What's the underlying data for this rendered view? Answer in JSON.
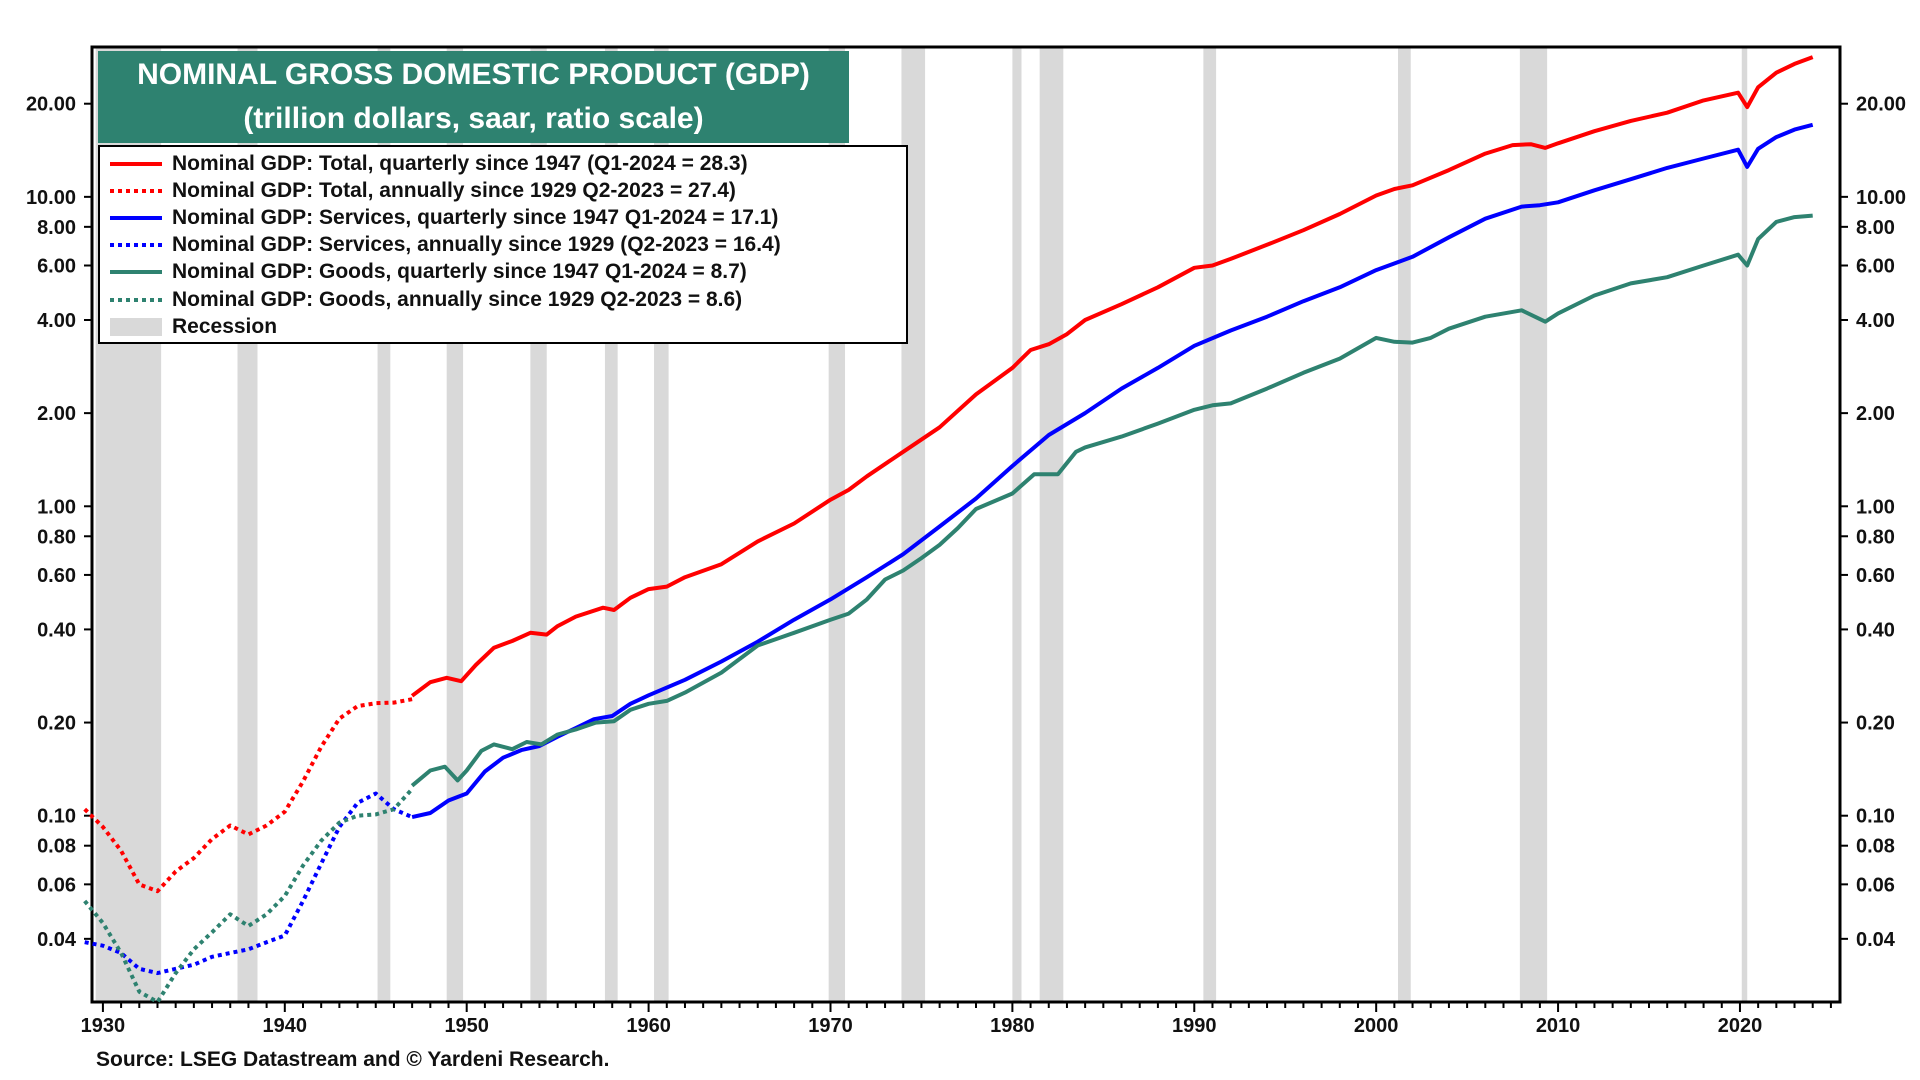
{
  "title": {
    "line1": "NOMINAL GROSS DOMESTIC PRODUCT (GDP)",
    "line2": "(trillion dollars, saar, ratio scale)"
  },
  "source": "Source: LSEG Datastream and © Yardeni Research.",
  "legend": [
    {
      "label": "Nominal GDP: Total, quarterly since 1947  (Q1-2024 = 28.3)",
      "color": "#ff0000",
      "style": "solid"
    },
    {
      "label": "Nominal GDP: Total, annually since 1929 Q2-2023 = 27.4)",
      "color": "#ff0000",
      "style": "dotted"
    },
    {
      "label": "Nominal GDP: Services, quarterly since 1947 Q1-2024 = 17.1)",
      "color": "#0000ff",
      "style": "solid"
    },
    {
      "label": "Nominal GDP: Services, annually since 1929 (Q2-2023 = 16.4)",
      "color": "#0000ff",
      "style": "dotted"
    },
    {
      "label": "Nominal GDP: Goods, quarterly since 1947 Q1-2024 = 8.7)",
      "color": "#2e8270",
      "style": "solid"
    },
    {
      "label": "Nominal GDP: Goods, annually since 1929 Q2-2023 = 8.6)",
      "color": "#2e8270",
      "style": "dotted"
    },
    {
      "label": "Recession",
      "color": "#d9d9d9",
      "style": "box"
    }
  ],
  "chart_data": {
    "type": "line",
    "scale": "log",
    "xlim": [
      1929.4,
      2025.5
    ],
    "ylim": [
      0.025,
      30.5
    ],
    "x_ticks": [
      1930,
      1940,
      1950,
      1960,
      1970,
      1980,
      1990,
      2000,
      2010,
      2020
    ],
    "y_ticks": [
      {
        "value": 20,
        "label": "20.00"
      },
      {
        "value": 10,
        "label": "10.00"
      },
      {
        "value": 8,
        "label": "8.00"
      },
      {
        "value": 6,
        "label": "6.00"
      },
      {
        "value": 4,
        "label": "4.00"
      },
      {
        "value": 2,
        "label": "2.00"
      },
      {
        "value": 1,
        "label": "1.00"
      },
      {
        "value": 0.8,
        "label": "0.80"
      },
      {
        "value": 0.6,
        "label": "0.60"
      },
      {
        "value": 0.4,
        "label": "0.40"
      },
      {
        "value": 0.2,
        "label": "0.20"
      },
      {
        "value": 0.1,
        "label": "0.10"
      },
      {
        "value": 0.08,
        "label": "0.08"
      },
      {
        "value": 0.06,
        "label": "0.06"
      },
      {
        "value": 0.04,
        "label": "0.04"
      }
    ],
    "recessions": [
      [
        1929.6,
        1933.2
      ],
      [
        1937.4,
        1938.5
      ],
      [
        1945.1,
        1945.8
      ],
      [
        1948.9,
        1949.8
      ],
      [
        1953.5,
        1954.4
      ],
      [
        1957.6,
        1958.3
      ],
      [
        1960.3,
        1961.1
      ],
      [
        1969.9,
        1970.8
      ],
      [
        1973.9,
        1975.2
      ],
      [
        1980.0,
        1980.5
      ],
      [
        1981.5,
        1982.8
      ],
      [
        1990.5,
        1991.2
      ],
      [
        2001.2,
        2001.9
      ],
      [
        2007.9,
        2009.4
      ],
      [
        2020.1,
        2020.4
      ]
    ],
    "series": [
      {
        "name": "Nominal GDP: Total, annually since 1929",
        "color": "#ff0000",
        "style": "dotted",
        "x": [
          1929,
          1930,
          1931,
          1932,
          1933,
          1934,
          1935,
          1936,
          1937,
          1938,
          1939,
          1940,
          1941,
          1942,
          1943,
          1944,
          1945,
          1946,
          1947
        ],
        "y": [
          0.105,
          0.092,
          0.077,
          0.06,
          0.057,
          0.066,
          0.073,
          0.084,
          0.093,
          0.087,
          0.093,
          0.103,
          0.129,
          0.167,
          0.206,
          0.226,
          0.231,
          0.232,
          0.238
        ]
      },
      {
        "name": "Nominal GDP: Total, quarterly since 1947",
        "color": "#ff0000",
        "style": "solid",
        "x": [
          1947,
          1948,
          1948.9,
          1949.7,
          1950.5,
          1951.5,
          1952.5,
          1953.5,
          1954.4,
          1955,
          1956,
          1957.5,
          1958.1,
          1959,
          1960,
          1961,
          1962,
          1964,
          1966,
          1968,
          1970,
          1971,
          1972,
          1974,
          1976,
          1978,
          1980,
          1981,
          1982,
          1983,
          1984,
          1986,
          1988,
          1990,
          1991,
          1992,
          1994,
          1996,
          1998,
          2000,
          2001,
          2002,
          2004,
          2006,
          2007.5,
          2008.5,
          2009.3,
          2010,
          2012,
          2014,
          2016,
          2018,
          2019.9,
          2020.4,
          2021,
          2022,
          2023,
          2024
        ],
        "y": [
          0.244,
          0.27,
          0.279,
          0.272,
          0.307,
          0.349,
          0.367,
          0.39,
          0.385,
          0.41,
          0.44,
          0.47,
          0.462,
          0.506,
          0.54,
          0.55,
          0.59,
          0.65,
          0.77,
          0.88,
          1.05,
          1.13,
          1.25,
          1.5,
          1.8,
          2.3,
          2.8,
          3.2,
          3.34,
          3.6,
          4.0,
          4.5,
          5.1,
          5.9,
          6.0,
          6.3,
          7.0,
          7.8,
          8.8,
          10.1,
          10.6,
          10.9,
          12.2,
          13.8,
          14.7,
          14.8,
          14.4,
          14.9,
          16.3,
          17.6,
          18.7,
          20.5,
          21.7,
          19.5,
          22.6,
          25.2,
          26.9,
          28.3
        ]
      },
      {
        "name": "Nominal GDP: Services, annually since 1929",
        "color": "#0000ff",
        "style": "dotted",
        "x": [
          1929,
          1930,
          1931,
          1932,
          1933,
          1934,
          1935,
          1936,
          1937,
          1938,
          1939,
          1940,
          1941,
          1942,
          1943,
          1944,
          1945,
          1946,
          1947
        ],
        "y": [
          0.039,
          0.038,
          0.036,
          0.032,
          0.031,
          0.032,
          0.033,
          0.035,
          0.036,
          0.037,
          0.039,
          0.041,
          0.053,
          0.07,
          0.092,
          0.11,
          0.118,
          0.105,
          0.099
        ]
      },
      {
        "name": "Nominal GDP: Services, quarterly since 1947",
        "color": "#0000ff",
        "style": "solid",
        "x": [
          1947,
          1948,
          1949,
          1950,
          1951,
          1952,
          1953,
          1954,
          1955,
          1956,
          1957,
          1958,
          1959,
          1960,
          1962,
          1964,
          1966,
          1968,
          1970,
          1972,
          1974,
          1976,
          1978,
          1980,
          1982,
          1984,
          1986,
          1988,
          1990,
          1992,
          1994,
          1996,
          1998,
          2000,
          2002,
          2004,
          2006,
          2008,
          2009,
          2010,
          2012,
          2014,
          2016,
          2018,
          2019.9,
          2020.4,
          2021,
          2022,
          2023,
          2024
        ],
        "y": [
          0.099,
          0.102,
          0.112,
          0.118,
          0.139,
          0.154,
          0.163,
          0.168,
          0.18,
          0.192,
          0.205,
          0.21,
          0.23,
          0.245,
          0.275,
          0.315,
          0.365,
          0.43,
          0.5,
          0.59,
          0.7,
          0.86,
          1.06,
          1.35,
          1.7,
          2.0,
          2.4,
          2.8,
          3.3,
          3.7,
          4.1,
          4.6,
          5.1,
          5.8,
          6.4,
          7.4,
          8.5,
          9.3,
          9.4,
          9.6,
          10.5,
          11.4,
          12.4,
          13.3,
          14.2,
          12.5,
          14.3,
          15.6,
          16.5,
          17.1
        ]
      },
      {
        "name": "Nominal GDP: Goods, annually since 1929",
        "color": "#2e8270",
        "style": "dotted",
        "x": [
          1929,
          1930,
          1931,
          1932,
          1933,
          1934,
          1935,
          1936,
          1937,
          1938,
          1939,
          1940,
          1941,
          1942,
          1943,
          1944,
          1945,
          1946,
          1947
        ],
        "y": [
          0.053,
          0.045,
          0.036,
          0.027,
          0.025,
          0.031,
          0.037,
          0.042,
          0.048,
          0.044,
          0.048,
          0.055,
          0.069,
          0.083,
          0.095,
          0.1,
          0.101,
          0.105,
          0.122
        ]
      },
      {
        "name": "Nominal GDP: Goods, quarterly since 1947",
        "color": "#2e8270",
        "style": "solid",
        "x": [
          1947,
          1948,
          1948.8,
          1949.5,
          1950,
          1950.8,
          1951.5,
          1952.5,
          1953.3,
          1954.1,
          1955,
          1956,
          1957.1,
          1958.1,
          1959,
          1960,
          1961,
          1962,
          1964,
          1966,
          1968,
          1970,
          1971,
          1972,
          1973,
          1974,
          1975,
          1976,
          1977,
          1978,
          1980,
          1981.2,
          1982.5,
          1983.5,
          1984,
          1986,
          1988,
          1990,
          1991,
          1992,
          1994,
          1996,
          1998,
          2000,
          2001,
          2002,
          2003,
          2004,
          2006,
          2008,
          2009.3,
          2010,
          2012,
          2014,
          2016,
          2018,
          2019.9,
          2020.4,
          2021,
          2022,
          2023,
          2024
        ],
        "y": [
          0.125,
          0.14,
          0.144,
          0.13,
          0.14,
          0.162,
          0.17,
          0.164,
          0.173,
          0.17,
          0.183,
          0.19,
          0.2,
          0.202,
          0.22,
          0.23,
          0.235,
          0.25,
          0.29,
          0.355,
          0.39,
          0.43,
          0.45,
          0.5,
          0.58,
          0.62,
          0.68,
          0.75,
          0.85,
          0.98,
          1.1,
          1.27,
          1.27,
          1.5,
          1.55,
          1.68,
          1.85,
          2.05,
          2.12,
          2.15,
          2.4,
          2.7,
          3.0,
          3.5,
          3.4,
          3.38,
          3.5,
          3.75,
          4.1,
          4.3,
          3.95,
          4.2,
          4.8,
          5.25,
          5.5,
          6.0,
          6.5,
          6.0,
          7.3,
          8.3,
          8.6,
          8.7
        ]
      }
    ]
  }
}
